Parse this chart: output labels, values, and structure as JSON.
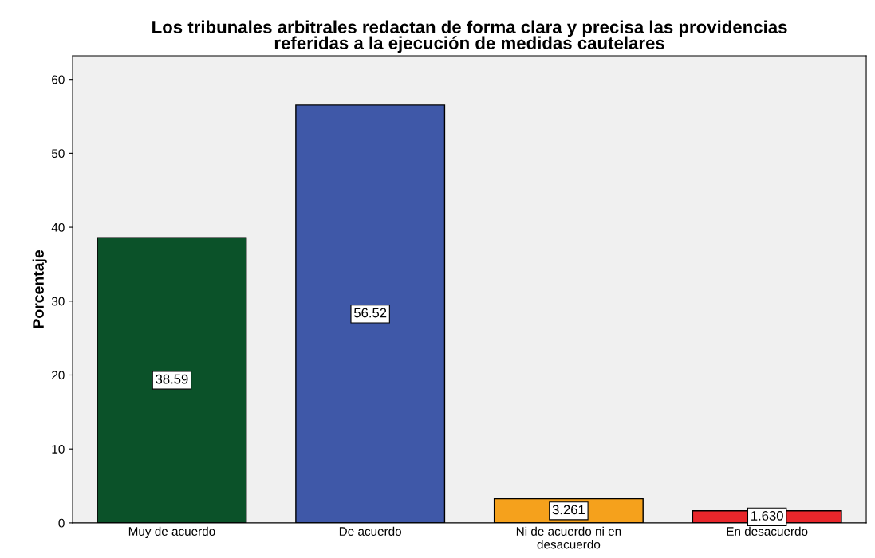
{
  "chart_data": {
    "type": "bar",
    "title": "Los tribunales arbitrales redactan de forma clara y precisa las providencias\nreferidas a la ejecución de medidas cautelares",
    "ylabel": "Porcentaje",
    "categories": [
      "Muy de acuerdo",
      "De acuerdo",
      "Ni de acuerdo ni en\ndesacuerdo",
      "En desacuerdo"
    ],
    "values": [
      38.59,
      56.52,
      3.261,
      1.63
    ],
    "colors": [
      "#0b5229",
      "#3f58a8",
      "#f5a11c",
      "#e8262b"
    ],
    "value_labels": [
      "38.59",
      "56.52",
      "3.261",
      "1.630"
    ],
    "ylim": [
      0,
      63.2
    ],
    "yticks": [
      0,
      10,
      20,
      30,
      40,
      50,
      60
    ],
    "grid": false
  }
}
